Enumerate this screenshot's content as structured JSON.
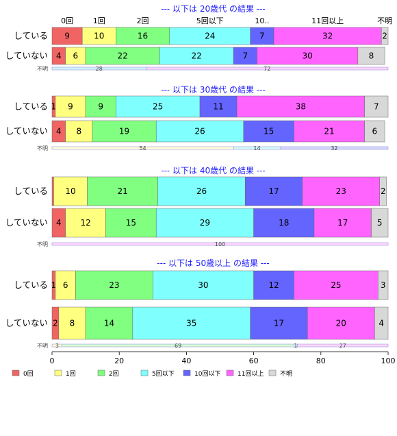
{
  "categories": [
    "0回",
    "1回",
    "2回",
    "5回以下",
    "10回以下",
    "11回以上",
    "不明"
  ],
  "top_category_labels": [
    "0回",
    "1回",
    "2回",
    "5回以下",
    "10..",
    "11回以上",
    "不明"
  ],
  "colors": [
    "#f06464",
    "#ffff80",
    "#80ff80",
    "#80ffff",
    "#6464ff",
    "#ff64ff",
    "#d8d8d8"
  ],
  "unknown_label": "不明",
  "x_axis": {
    "min": 0,
    "max": 100,
    "ticks": [
      "0",
      "20",
      "40",
      "60",
      "80",
      "100"
    ]
  },
  "chart_data": {
    "type": "bar",
    "orientation": "horizontal",
    "stacked": "percent",
    "xlim": [
      0,
      100
    ],
    "legend_position": "bottom",
    "categories": [
      "0回",
      "1回",
      "2回",
      "5回以下",
      "10回以下",
      "11回以上",
      "不明"
    ],
    "panels": [
      {
        "title": "--- 以下は 20歳代 の結果 ---",
        "rows": [
          {
            "label": "している",
            "values": [
              9,
              10,
              16,
              24,
              7,
              32,
              2
            ]
          },
          {
            "label": "していない",
            "values": [
              4,
              6,
              22,
              22,
              7,
              30,
              8
            ]
          }
        ],
        "unknown_split": [
          {
            "value": 28,
            "color": "#d4f2fa"
          },
          {
            "value": 72,
            "color": "#ffd6ff"
          }
        ]
      },
      {
        "title": "--- 以下は 30歳代 の結果 ---",
        "rows": [
          {
            "label": "している",
            "values": [
              1,
              9,
              9,
              25,
              11,
              38,
              7
            ]
          },
          {
            "label": "していない",
            "values": [
              4,
              8,
              19,
              26,
              15,
              21,
              6
            ]
          }
        ],
        "unknown_split": [
          {
            "value": 54,
            "color": "#ffffd6"
          },
          {
            "value": 14,
            "color": "#d4fafa"
          },
          {
            "value": 32,
            "color": "#d6d6ff"
          }
        ]
      },
      {
        "title": "--- 以下は 40歳代 の結果 ---",
        "rows": [
          {
            "label": "している",
            "values": [
              0.5,
              10,
              21,
              26,
              17,
              23,
              2
            ]
          },
          {
            "label": "していない",
            "values": [
              4,
              12,
              15,
              29,
              18,
              17,
              5
            ]
          }
        ],
        "unknown_split": [
          {
            "value": 100,
            "color": "#ffd6ff"
          }
        ]
      },
      {
        "title": "--- 以下は 50歳以上 の結果 ---",
        "rows": [
          {
            "label": "している",
            "values": [
              1,
              6,
              23,
              30,
              12,
              25,
              3
            ]
          },
          {
            "label": "していない",
            "values": [
              2,
              8,
              14,
              35,
              17,
              20,
              4
            ]
          }
        ],
        "unknown_split": [
          {
            "value": 3,
            "color": "#ffffd6"
          },
          {
            "value": 69,
            "color": "#d6ffd6"
          },
          {
            "value": 1,
            "color": "#d4fafa"
          },
          {
            "value": 27,
            "color": "#ffd6ff"
          }
        ]
      }
    ]
  }
}
